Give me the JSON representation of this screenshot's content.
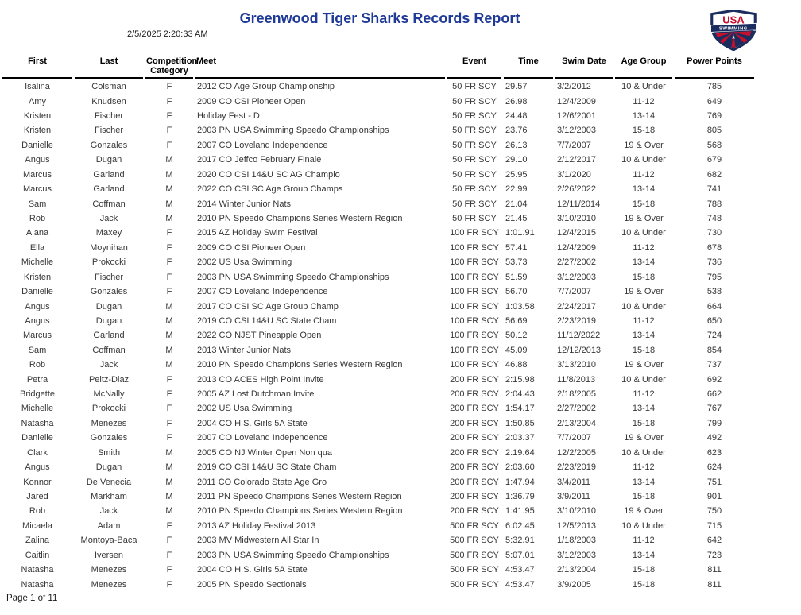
{
  "report": {
    "title": "Greenwood Tiger Sharks Records Report",
    "timestamp": "2/5/2025 2:20:33 AM",
    "page_footer": "Page 1 of 11",
    "logo": {
      "icon": "usa-swimming-logo",
      "text_top": "USA",
      "text_banner": "SWIMMING",
      "colors": {
        "navy": "#1b2d5e",
        "red": "#c8102e",
        "white": "#ffffff"
      }
    },
    "accent_title_color": "#1f3a96"
  },
  "table": {
    "columns": [
      "First",
      "Last",
      "Competition Category",
      "Meet",
      "Event",
      "Time",
      "Swim Date",
      "Age Group",
      "Power Points"
    ],
    "column_keys": [
      "first",
      "last",
      "category",
      "meet",
      "event",
      "time",
      "swim_date",
      "age_group",
      "power_points"
    ],
    "column_aligns": [
      "center",
      "center",
      "center",
      "left",
      "center",
      "left",
      "left",
      "center",
      "center"
    ],
    "rows": [
      [
        "Isalina",
        "Colsman",
        "F",
        "2012 CO Age Group Championship",
        "50 FR SCY",
        "29.57",
        "3/2/2012",
        "10 & Under",
        "785"
      ],
      [
        "Amy",
        "Knudsen",
        "F",
        "2009 CO CSI Pioneer Open",
        "50 FR SCY",
        "26.98",
        "12/4/2009",
        "11-12",
        "649"
      ],
      [
        "Kristen",
        "Fischer",
        "F",
        "Holiday Fest - D",
        "50 FR SCY",
        "24.48",
        "12/6/2001",
        "13-14",
        "769"
      ],
      [
        "Kristen",
        "Fischer",
        "F",
        "2003 PN USA Swimming Speedo Championships",
        "50 FR SCY",
        "23.76",
        "3/12/2003",
        "15-18",
        "805"
      ],
      [
        "Danielle",
        "Gonzales",
        "F",
        "2007 CO Loveland Independence",
        "50 FR SCY",
        "26.13",
        "7/7/2007",
        "19 & Over",
        "568"
      ],
      [
        "Angus",
        "Dugan",
        "M",
        "2017 CO Jeffco February Finale",
        "50 FR SCY",
        "29.10",
        "2/12/2017",
        "10 & Under",
        "679"
      ],
      [
        "Marcus",
        "Garland",
        "M",
        "2020 CO CSI 14&U SC AG Champio",
        "50 FR SCY",
        "25.95",
        "3/1/2020",
        "11-12",
        "682"
      ],
      [
        "Marcus",
        "Garland",
        "M",
        "2022 CO CSI SC Age Group Champs",
        "50 FR SCY",
        "22.99",
        "2/26/2022",
        "13-14",
        "741"
      ],
      [
        "Sam",
        "Coffman",
        "M",
        "2014 Winter Junior Nats",
        "50 FR SCY",
        "21.04",
        "12/11/2014",
        "15-18",
        "788"
      ],
      [
        "Rob",
        "Jack",
        "M",
        "2010 PN Speedo Champions Series Western Region",
        "50 FR SCY",
        "21.45",
        "3/10/2010",
        "19 & Over",
        "748"
      ],
      [
        "Alana",
        "Maxey",
        "F",
        "2015 AZ Holiday Swim Festival",
        "100 FR SCY",
        "1:01.91",
        "12/4/2015",
        "10 & Under",
        "730"
      ],
      [
        "Ella",
        "Moynihan",
        "F",
        "2009 CO CSI Pioneer Open",
        "100 FR SCY",
        "57.41",
        "12/4/2009",
        "11-12",
        "678"
      ],
      [
        "Michelle",
        "Prokocki",
        "F",
        "2002 US Usa Swimming",
        "100 FR SCY",
        "53.73",
        "2/27/2002",
        "13-14",
        "736"
      ],
      [
        "Kristen",
        "Fischer",
        "F",
        "2003 PN USA Swimming Speedo Championships",
        "100 FR SCY",
        "51.59",
        "3/12/2003",
        "15-18",
        "795"
      ],
      [
        "Danielle",
        "Gonzales",
        "F",
        "2007 CO Loveland Independence",
        "100 FR SCY",
        "56.70",
        "7/7/2007",
        "19 & Over",
        "538"
      ],
      [
        "Angus",
        "Dugan",
        "M",
        "2017 CO CSI SC Age Group Champ",
        "100 FR SCY",
        "1:03.58",
        "2/24/2017",
        "10 & Under",
        "664"
      ],
      [
        "Angus",
        "Dugan",
        "M",
        "2019 CO CSI 14&U SC State Cham",
        "100 FR SCY",
        "56.69",
        "2/23/2019",
        "11-12",
        "650"
      ],
      [
        "Marcus",
        "Garland",
        "M",
        "2022 CO NJST Pineapple Open",
        "100 FR SCY",
        "50.12",
        "11/12/2022",
        "13-14",
        "724"
      ],
      [
        "Sam",
        "Coffman",
        "M",
        "2013 Winter Junior Nats",
        "100 FR SCY",
        "45.09",
        "12/12/2013",
        "15-18",
        "854"
      ],
      [
        "Rob",
        "Jack",
        "M",
        "2010 PN Speedo Champions Series Western Region",
        "100 FR SCY",
        "46.88",
        "3/13/2010",
        "19 & Over",
        "737"
      ],
      [
        "Petra",
        "Peitz-Diaz",
        "F",
        "2013 CO ACES High Point Invite",
        "200 FR SCY",
        "2:15.98",
        "11/8/2013",
        "10 & Under",
        "692"
      ],
      [
        "Bridgette",
        "McNally",
        "F",
        "2005 AZ Lost Dutchman Invite",
        "200 FR SCY",
        "2:04.43",
        "2/18/2005",
        "11-12",
        "662"
      ],
      [
        "Michelle",
        "Prokocki",
        "F",
        "2002 US Usa Swimming",
        "200 FR SCY",
        "1:54.17",
        "2/27/2002",
        "13-14",
        "767"
      ],
      [
        "Natasha",
        "Menezes",
        "F",
        "2004 CO H.S. Girls 5A State",
        "200 FR SCY",
        "1:50.85",
        "2/13/2004",
        "15-18",
        "799"
      ],
      [
        "Danielle",
        "Gonzales",
        "F",
        "2007 CO Loveland Independence",
        "200 FR SCY",
        "2:03.37",
        "7/7/2007",
        "19 & Over",
        "492"
      ],
      [
        "Clark",
        "Smith",
        "M",
        "2005 CO NJ Winter Open Non qua",
        "200 FR SCY",
        "2:19.64",
        "12/2/2005",
        "10 & Under",
        "623"
      ],
      [
        "Angus",
        "Dugan",
        "M",
        "2019 CO CSI 14&U SC State Cham",
        "200 FR SCY",
        "2:03.60",
        "2/23/2019",
        "11-12",
        "624"
      ],
      [
        "Konnor",
        "De Venecia",
        "M",
        "2011 CO Colorado State Age Gro",
        "200 FR SCY",
        "1:47.94",
        "3/4/2011",
        "13-14",
        "751"
      ],
      [
        "Jared",
        "Markham",
        "M",
        "2011 PN Speedo Champions Series Western Region",
        "200 FR SCY",
        "1:36.79",
        "3/9/2011",
        "15-18",
        "901"
      ],
      [
        "Rob",
        "Jack",
        "M",
        "2010 PN Speedo Champions Series Western Region",
        "200 FR SCY",
        "1:41.95",
        "3/10/2010",
        "19 & Over",
        "750"
      ],
      [
        "Micaela",
        "Adam",
        "F",
        "2013 AZ Holiday Festival 2013",
        "500 FR SCY",
        "6:02.45",
        "12/5/2013",
        "10 & Under",
        "715"
      ],
      [
        "Zalina",
        "Montoya-Baca",
        "F",
        "2003 MV Midwestern All Star In",
        "500 FR SCY",
        "5:32.91",
        "1/18/2003",
        "11-12",
        "642"
      ],
      [
        "Caitlin",
        "Iversen",
        "F",
        "2003 PN USA Swimming Speedo Championships",
        "500 FR SCY",
        "5:07.01",
        "3/12/2003",
        "13-14",
        "723"
      ],
      [
        "Natasha",
        "Menezes",
        "F",
        "2004 CO H.S. Girls 5A State",
        "500 FR SCY",
        "4:53.47",
        "2/13/2004",
        "15-18",
        "811"
      ],
      [
        "Natasha",
        "Menezes",
        "F",
        "2005 PN Speedo Sectionals",
        "500 FR SCY",
        "4:53.47",
        "3/9/2005",
        "15-18",
        "811"
      ]
    ]
  }
}
